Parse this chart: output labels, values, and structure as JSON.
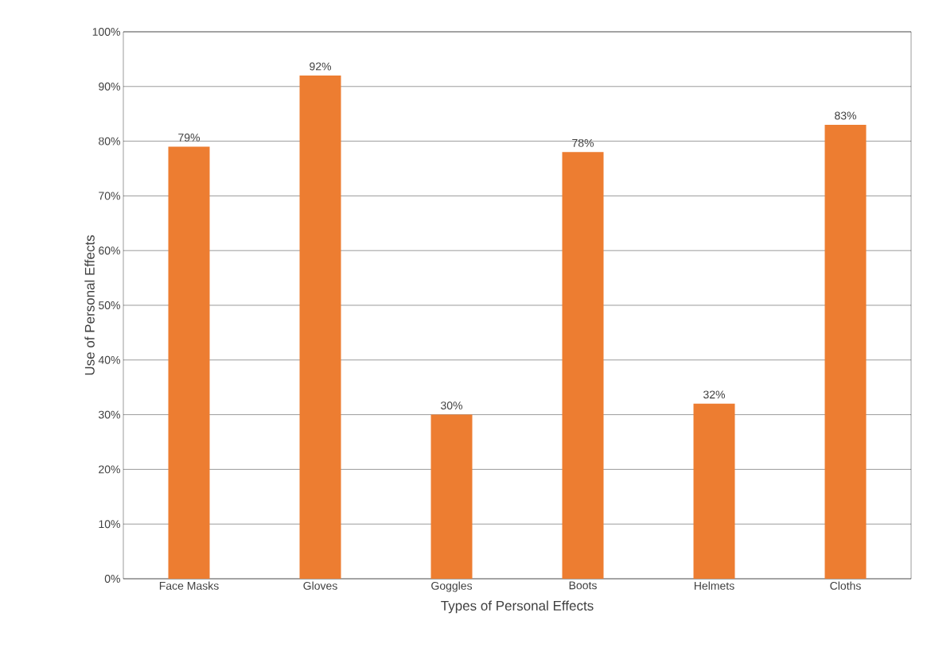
{
  "chart_data": {
    "type": "bar",
    "xlabel": "Types of Personal Effects",
    "ylabel": "Use of Personal Effects",
    "categories": [
      "Face Masks",
      "Gloves",
      "Goggles",
      "Boots",
      "Helmets",
      "Cloths"
    ],
    "values": [
      79,
      92,
      30,
      78,
      32,
      83
    ],
    "value_labels": [
      "79%",
      "92%",
      "30%",
      "78%",
      "32%",
      "83%"
    ],
    "color": "#ed7d31",
    "ylim": [
      0,
      100
    ],
    "yticks": [
      {
        "value": 0,
        "label": "0%"
      },
      {
        "value": 10,
        "label": "10%"
      },
      {
        "value": 20,
        "label": "20%"
      },
      {
        "value": 30,
        "label": "30%"
      },
      {
        "value": 40,
        "label": "40%"
      },
      {
        "value": 50,
        "label": "50%"
      },
      {
        "value": 60,
        "label": "60%"
      },
      {
        "value": 70,
        "label": "70%"
      },
      {
        "value": 80,
        "label": "80%"
      },
      {
        "value": 90,
        "label": "90%"
      },
      {
        "value": 100,
        "label": "100%"
      }
    ],
    "grid": "y"
  }
}
